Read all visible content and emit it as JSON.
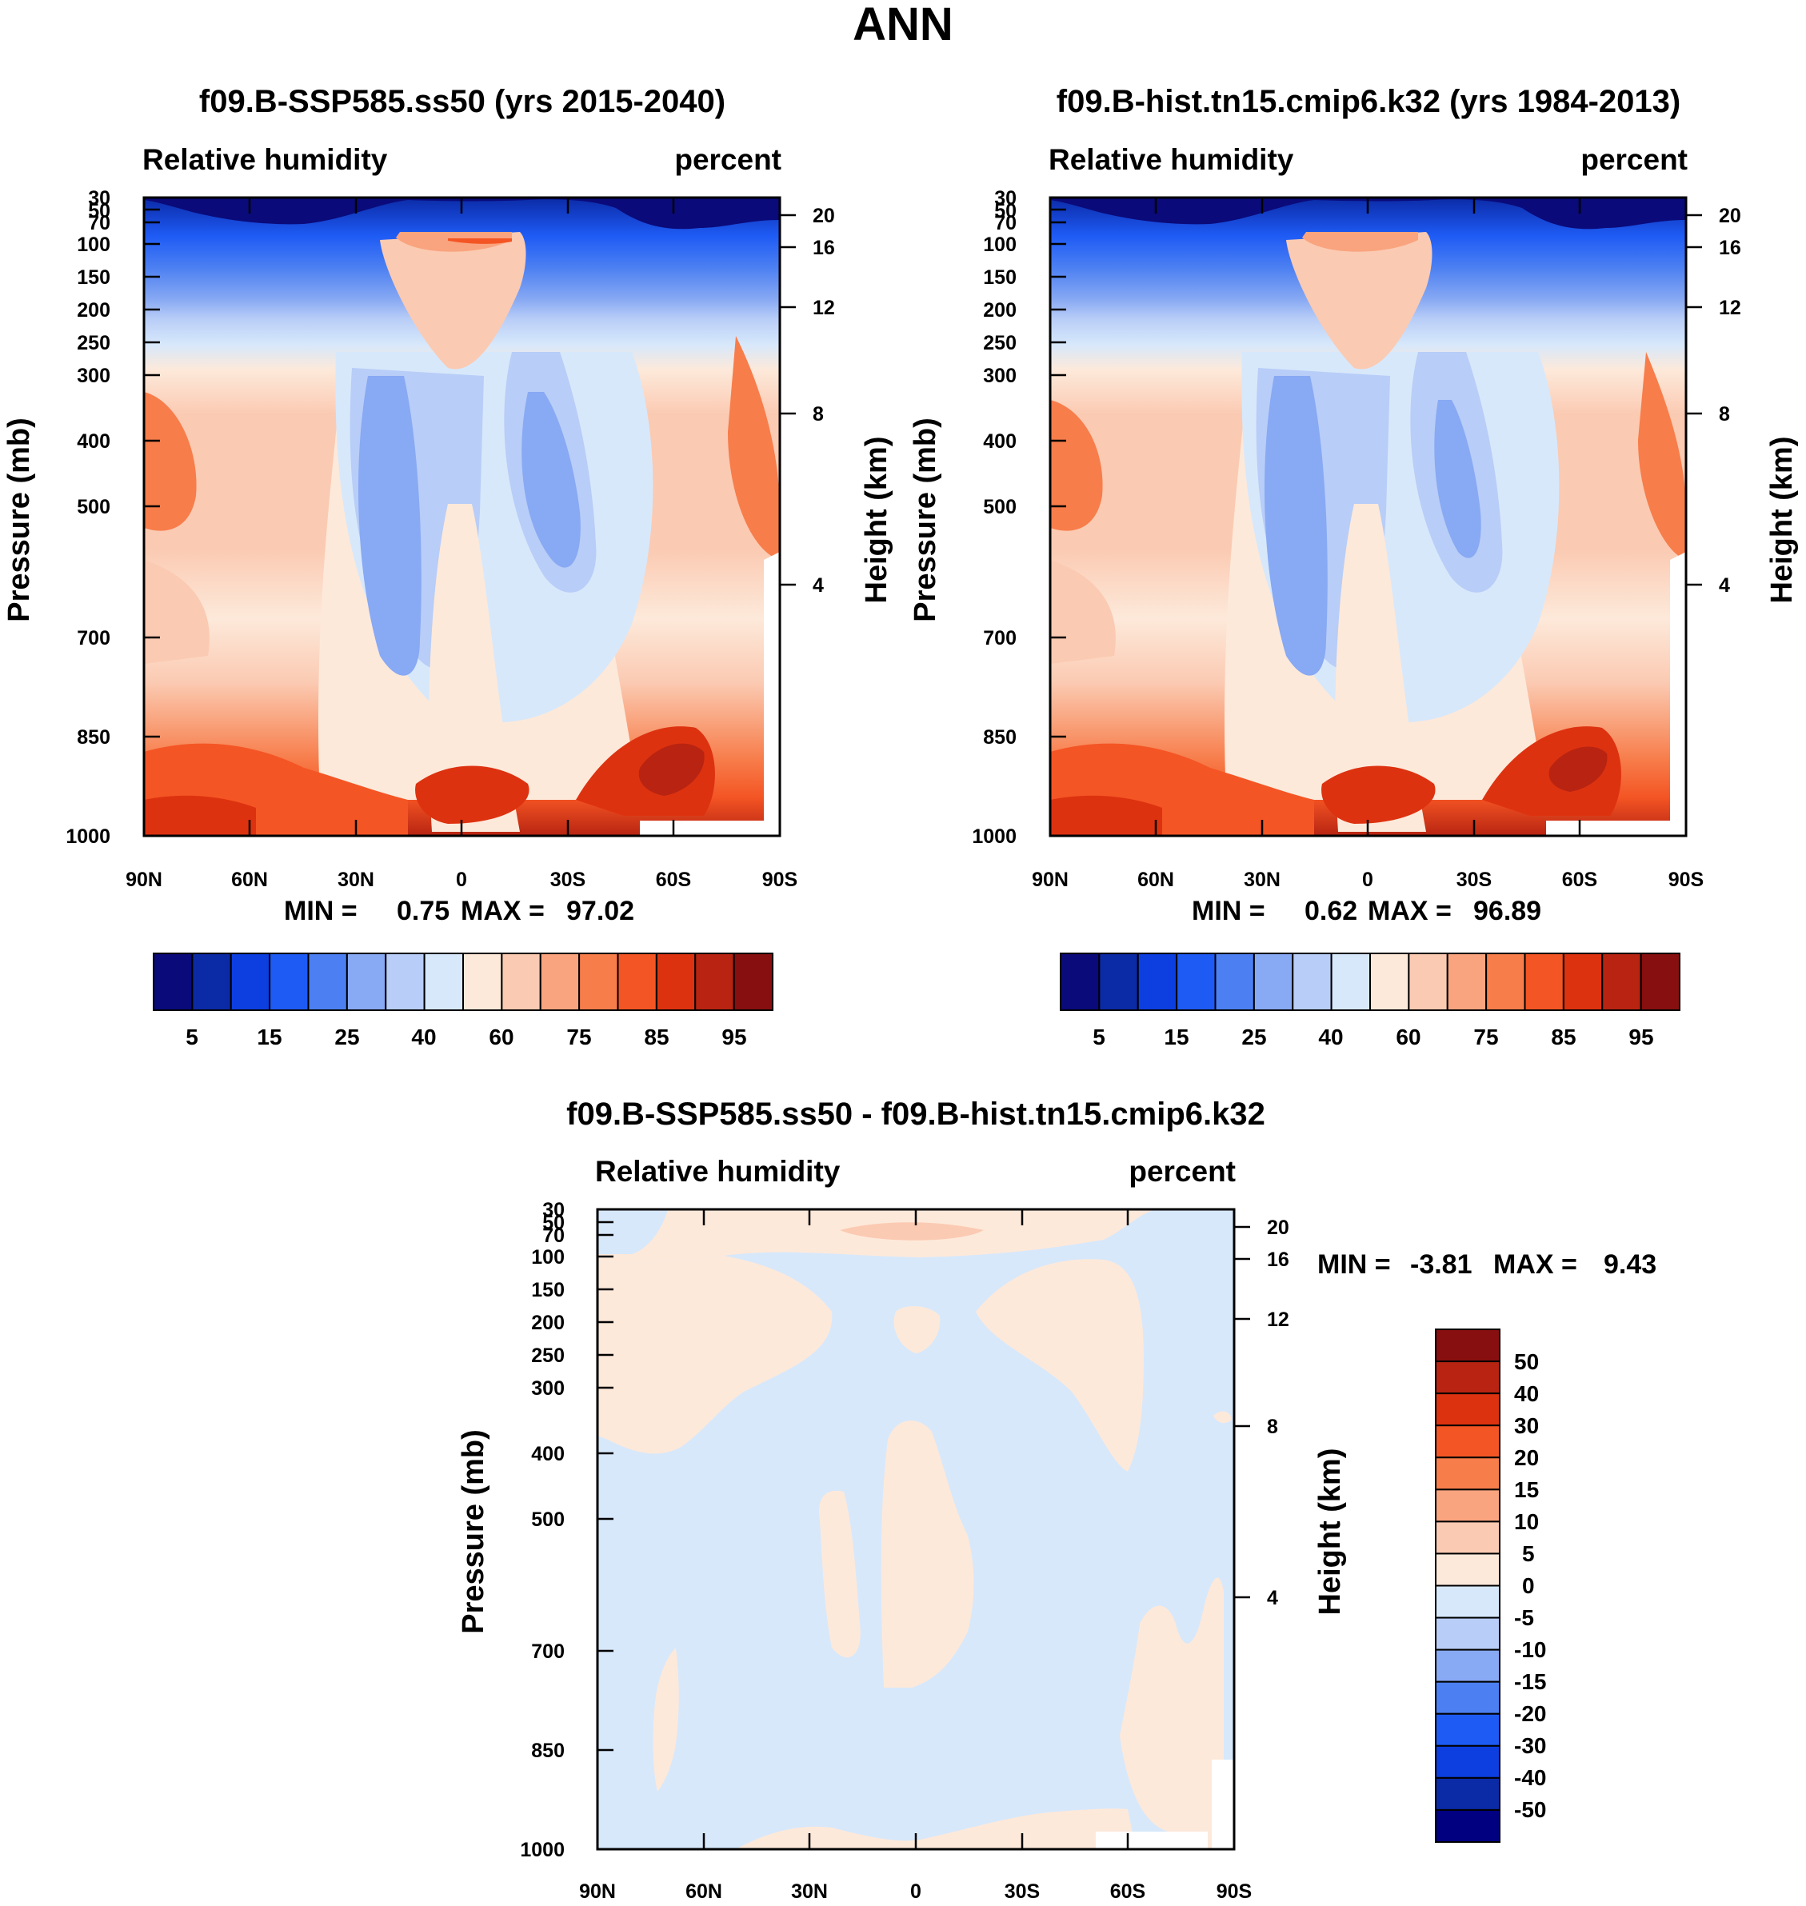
{
  "page_title": "ANN",
  "colors": {
    "abs_levels": [
      "#0a0a7a",
      "#0b2aa6",
      "#0c3ee0",
      "#1e5bf5",
      "#4c80f2",
      "#88a9f3",
      "#b8cdf7",
      "#d7e8fb",
      "#fde9da",
      "#fbcab2",
      "#f9a47e",
      "#f77d4b",
      "#f45524",
      "#dd3210",
      "#b82411",
      "#870f0f"
    ],
    "diff_levels": [
      "#000080",
      "#0b2aa6",
      "#0c3ee0",
      "#1e5bf5",
      "#4c80f2",
      "#88a9f3",
      "#b8cdf7",
      "#d7e8fb",
      "#fde9da",
      "#fbcab2",
      "#f9a47e",
      "#f77d4b",
      "#f45524",
      "#dd3210",
      "#b82411",
      "#870f0f"
    ]
  },
  "chart_data": [
    {
      "type": "heatmap",
      "title": "f09.B-SSP585.ss50 (yrs 2015-2040)",
      "left_subtitle": "Relative humidity",
      "right_subtitle": "percent",
      "ylabel": "Pressure (mb)",
      "ylabel_right": "Height (km)",
      "x_ticks": [
        "90N",
        "60N",
        "30N",
        "0",
        "30S",
        "60S",
        "90S"
      ],
      "y_ticks": [
        "30",
        "50",
        "70",
        "100",
        "150",
        "200",
        "250",
        "300",
        "400",
        "500",
        "700",
        "850",
        "1000"
      ],
      "height_ticks": [
        "20",
        "16",
        "12",
        "8",
        "4"
      ],
      "ylim": [
        1000,
        30
      ],
      "min_label": "MIN =",
      "min_value": "0.75",
      "max_label": "MAX =",
      "max_value": "97.02",
      "colorbar_labels": [
        "5",
        "15",
        "25",
        "40",
        "60",
        "75",
        "85",
        "95"
      ]
    },
    {
      "type": "heatmap",
      "title": "f09.B-hist.tn15.cmip6.k32 (yrs 1984-2013)",
      "left_subtitle": "Relative humidity",
      "right_subtitle": "percent",
      "ylabel": "Pressure (mb)",
      "ylabel_right": "Height (km)",
      "x_ticks": [
        "90N",
        "60N",
        "30N",
        "0",
        "30S",
        "60S",
        "90S"
      ],
      "y_ticks": [
        "30",
        "50",
        "70",
        "100",
        "150",
        "200",
        "250",
        "300",
        "400",
        "500",
        "700",
        "850",
        "1000"
      ],
      "height_ticks": [
        "20",
        "16",
        "12",
        "8",
        "4"
      ],
      "ylim": [
        1000,
        30
      ],
      "min_label": "MIN =",
      "min_value": "0.62",
      "max_label": "MAX =",
      "max_value": "96.89",
      "colorbar_labels": [
        "5",
        "15",
        "25",
        "40",
        "60",
        "75",
        "85",
        "95"
      ]
    },
    {
      "type": "heatmap",
      "title": "f09.B-SSP585.ss50 - f09.B-hist.tn15.cmip6.k32",
      "left_subtitle": "Relative humidity",
      "right_subtitle": "percent",
      "ylabel": "Pressure (mb)",
      "ylabel_right": "Height (km)",
      "x_ticks": [
        "90N",
        "60N",
        "30N",
        "0",
        "30S",
        "60S",
        "90S"
      ],
      "y_ticks": [
        "30",
        "50",
        "70",
        "100",
        "150",
        "200",
        "250",
        "300",
        "400",
        "500",
        "700",
        "850",
        "1000"
      ],
      "height_ticks": [
        "20",
        "16",
        "12",
        "8",
        "4"
      ],
      "ylim": [
        1000,
        30
      ],
      "min_label": "MIN =",
      "min_value": "-3.81",
      "max_label": "MAX =",
      "max_value": "9.43",
      "colorbar_labels": [
        "50",
        "40",
        "30",
        "20",
        "15",
        "10",
        "5",
        "0",
        "-5",
        "-10",
        "-15",
        "-20",
        "-30",
        "-40",
        "-50"
      ]
    }
  ]
}
